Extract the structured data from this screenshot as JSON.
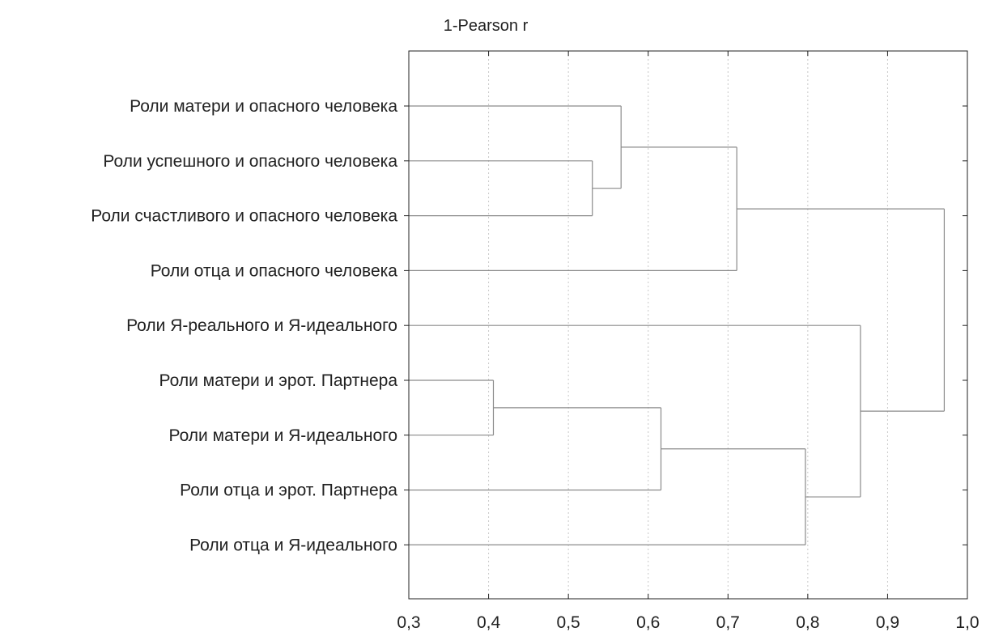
{
  "chart_data": {
    "type": "dendrogram",
    "title": "1-Pearson r",
    "orientation": "horizontal",
    "x_axis": {
      "min": 0.3,
      "max": 1.0,
      "ticks": [
        0.3,
        0.4,
        0.5,
        0.6,
        0.7,
        0.8,
        0.9,
        1.0
      ],
      "tick_labels": [
        "0,3",
        "0,4",
        "0,5",
        "0,6",
        "0,7",
        "0,8",
        "0,9",
        "1,0"
      ],
      "grid": "vertical-dotted"
    },
    "leaves": [
      "Роли матери и опасного человека",
      "Роли успешного и опасного человека",
      "Роли счастливого и опасного человека",
      "Роли отца и опасного человека",
      "Роли Я-реального и Я-идеального",
      "Роли матери и эрот. Партнера",
      "Роли матери и Я-идеального",
      "Роли отца и эрот. Партнера",
      "Роли отца и Я-идеального"
    ],
    "merges": [
      {
        "a": "L1",
        "b": "L2",
        "distance": 0.53
      },
      {
        "a": "L0",
        "b": "C0",
        "distance": 0.566
      },
      {
        "a": "C1",
        "b": "L3",
        "distance": 0.711
      },
      {
        "a": "L5",
        "b": "L6",
        "distance": 0.406
      },
      {
        "a": "C3",
        "b": "L7",
        "distance": 0.616
      },
      {
        "a": "C4",
        "b": "L8",
        "distance": 0.797
      },
      {
        "a": "L4",
        "b": "C5",
        "distance": 0.866
      },
      {
        "a": "C2",
        "b": "C6",
        "distance": 0.971
      }
    ],
    "colors": {
      "line": "#8a8a8a",
      "frame": "#222222",
      "grid": "#c8c8c8",
      "text": "#222222"
    }
  }
}
